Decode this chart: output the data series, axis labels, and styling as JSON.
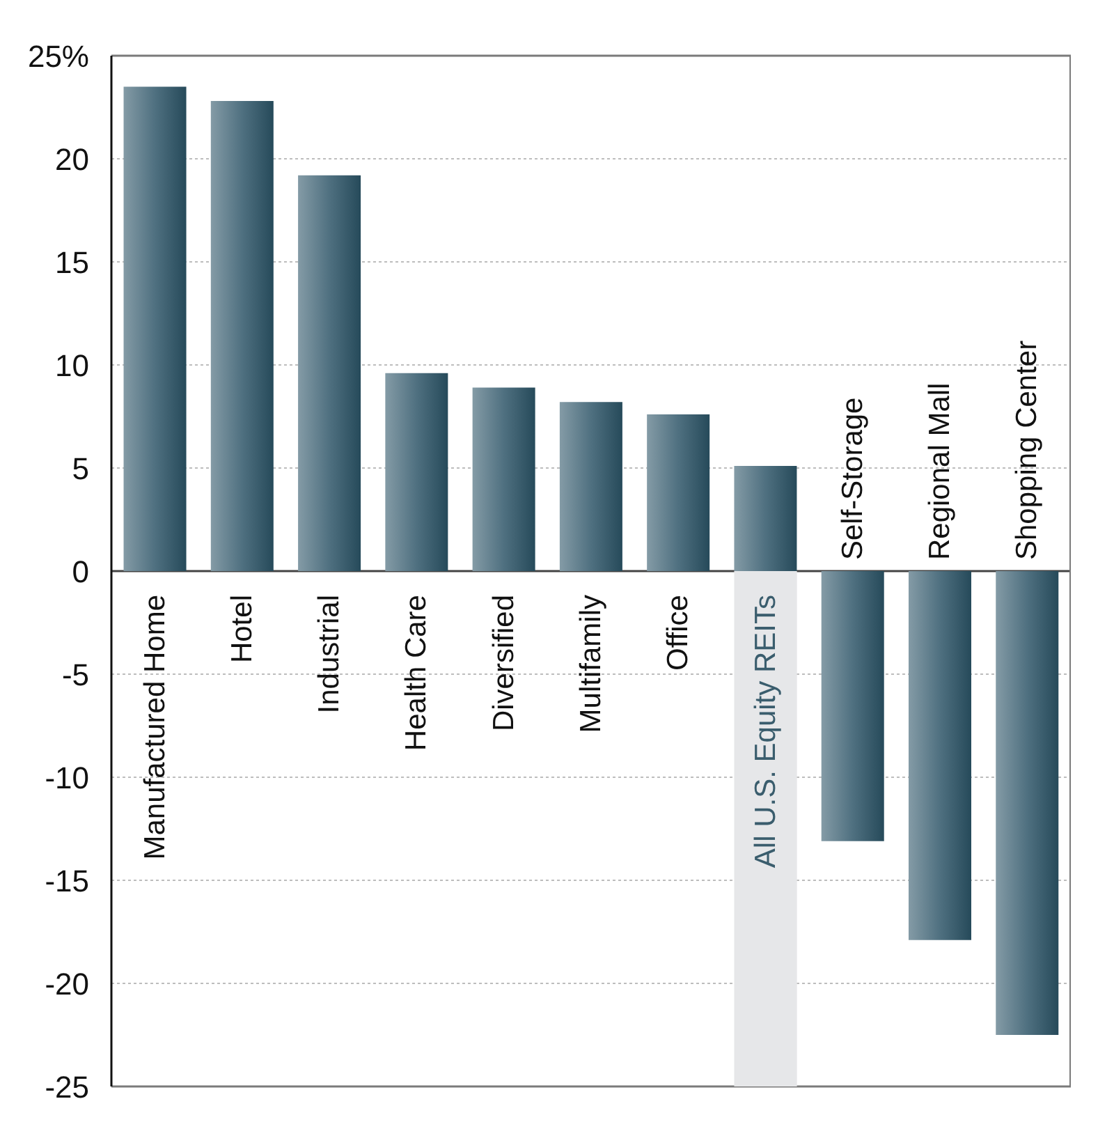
{
  "chart_data": {
    "type": "bar",
    "categories": [
      "Manufactured Home",
      "Hotel",
      "Industrial",
      "Health Care",
      "Diversified",
      "Multifamily",
      "Office",
      "All U.S. Equity REITs",
      "Self-Storage",
      "Regional Mall",
      "Shopping Center"
    ],
    "values": [
      23.5,
      22.8,
      19.2,
      9.6,
      8.9,
      8.2,
      7.6,
      5.1,
      -13.1,
      -17.9,
      -22.5
    ],
    "color": "#4f7080",
    "ylim": [
      -25,
      25
    ],
    "yticks": [
      -25,
      -20,
      -15,
      -10,
      -5,
      0,
      5,
      10,
      15,
      20,
      {
        "value": 25,
        "label": "25%"
      }
    ],
    "grid": "y",
    "bands": [
      {
        "axis": "x",
        "from": "All U.S. Equity REITs",
        "to": "All U.S. Equity REITs",
        "color": "#e6e7e9"
      }
    ]
  }
}
